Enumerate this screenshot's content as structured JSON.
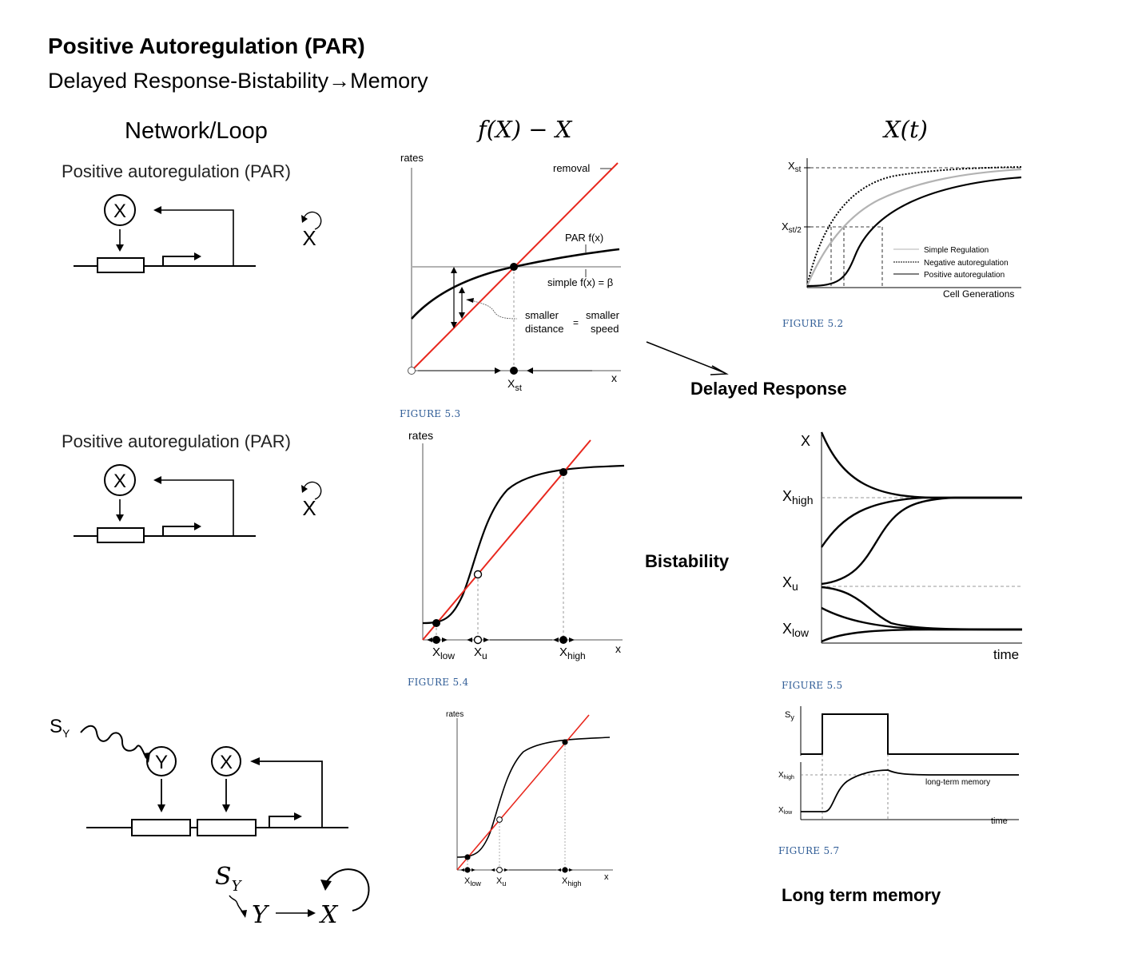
{
  "header": {
    "title": "Positive Autoregulation (PAR)",
    "subtitle": "Delayed Response-Bistability→Memory"
  },
  "columns": {
    "network": "Network/Loop",
    "rates": "f(X) − X",
    "time": "X(t)"
  },
  "network": {
    "par_label": "Positive autoregulation (PAR)",
    "node_x": "X",
    "node_y": "Y",
    "signal": "S",
    "signal_sub": "Y",
    "math_signal": "S",
    "math_signal_sub": "Y",
    "math_y": "Y",
    "math_x": "X"
  },
  "concepts": {
    "delayed": "Delayed Response",
    "bistability": "Bistability",
    "memory": "Long term memory"
  },
  "fig53": {
    "caption": "FIGURE 5.3",
    "ylabel": "rates",
    "xlabel": "x",
    "removal": "removal",
    "par_fx": "PAR f(x)",
    "simple_fx": "simple f(x) = β",
    "smaller_distance_1": "smaller",
    "smaller_distance_2": "distance",
    "equals": "=",
    "smaller_speed_1": "smaller",
    "smaller_speed_2": "speed",
    "xst": "X",
    "xst_sub": "st"
  },
  "fig52": {
    "caption": "FIGURE 5.2",
    "y_top": "X",
    "y_top_sub": "st",
    "y_half": "X",
    "y_half_sub": "st/2",
    "xlabel": "Cell Generations",
    "legend": [
      "Simple Regulation",
      "Negative autoregulation",
      "Positive autoregulation"
    ]
  },
  "fig54": {
    "caption": "FIGURE 5.4",
    "ylabel": "rates",
    "xlabel": "x",
    "x_low": "X",
    "x_low_sub": "low",
    "x_u": "X",
    "x_u_sub": "u",
    "x_high": "X",
    "x_high_sub": "high"
  },
  "fig55": {
    "caption": "FIGURE 5.5",
    "ylabel": "X",
    "x_high": "X",
    "x_high_sub": "high",
    "x_u": "X",
    "x_u_sub": "u",
    "x_low": "X",
    "x_low_sub": "low",
    "xlabel": "time"
  },
  "fig56": {
    "ylabel": "rates",
    "xlabel": "x",
    "x_low": "X",
    "x_low_sub": "low",
    "x_u": "X",
    "x_u_sub": "u",
    "x_high": "X",
    "x_high_sub": "high"
  },
  "fig57": {
    "caption": "FIGURE 5.7",
    "sy": "S",
    "sy_sub": "y",
    "x_high": "X",
    "x_high_sub": "high",
    "x_low": "X",
    "x_low_sub": "low",
    "memory_label": "long-term memory",
    "xlabel": "time"
  },
  "colors": {
    "removal_line": "#e8281e",
    "simple_line": "#b3b3b3",
    "caption": "#2f5c96"
  }
}
